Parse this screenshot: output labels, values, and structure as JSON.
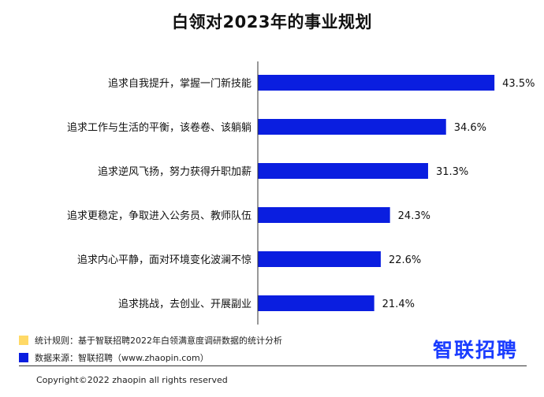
{
  "chart_data": {
    "type": "bar",
    "orientation": "horizontal",
    "title": "白领对2023年的事业规划",
    "categories": [
      "追求自我提升，掌握一门新技能",
      "追求工作与生活的平衡，该卷卷、该躺躺",
      "追求逆风飞扬，努力获得升职加薪",
      "追求更稳定，争取进入公务员、教师队伍",
      "追求内心平静，面对环境变化波澜不惊",
      "追求挑战，去创业、开展副业"
    ],
    "values": [
      43.5,
      34.6,
      31.3,
      24.3,
      22.6,
      21.4
    ],
    "value_labels": [
      "43.5%",
      "34.6%",
      "31.3%",
      "24.3%",
      "22.6%",
      "21.4%"
    ],
    "unit": "%",
    "bar_color": "#0a1ee0",
    "xlim": [
      0,
      50
    ],
    "grid": false
  },
  "legend": [
    {
      "color": "#ffd966",
      "text": "统计规则：基于智联招聘2022年白领满意度调研数据的统计分析"
    },
    {
      "color": "#0a1ee0",
      "text": "数据来源：智联招聘（www.zhaopin.com）"
    }
  ],
  "logo": {
    "text": "智联招聘",
    "color": "#1a3cff"
  },
  "footer": {
    "copyright": "Copyright©2022 zhaopin all rights reserved"
  }
}
